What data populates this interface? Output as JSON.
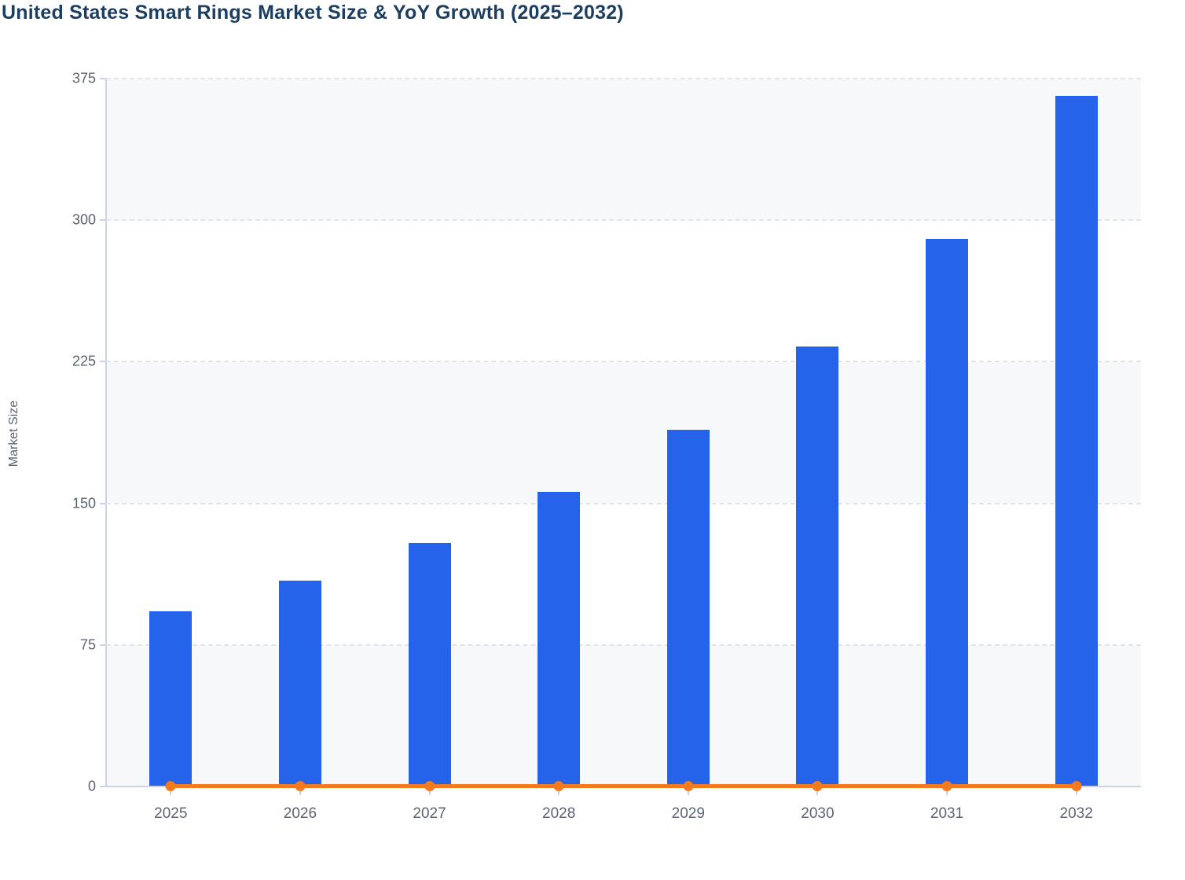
{
  "title": "United States Smart Rings Market Size & YoY Growth (2025–2032)",
  "colors": {
    "bar_blue": "#2563eb",
    "line_orange": "#f5791d",
    "title_text": "#1d3e63",
    "axis_text": "#5a6472",
    "axis_line": "#c9d3e8",
    "gridline": "#e3e4e8",
    "plot_band": "#f7f8fa"
  },
  "chart_data": {
    "type": "bar",
    "subtype": "vertical bars with flat line overlay",
    "title": "United States Smart Rings Market Size & YoY Growth (2025–2032)",
    "categories": [
      "2025",
      "2026",
      "2027",
      "2028",
      "2029",
      "2030",
      "2031",
      "2032"
    ],
    "series": [
      {
        "name": "Market Size",
        "type": "bar",
        "color": "#2563eb",
        "values": [
          93,
          109,
          129,
          156,
          189,
          233,
          290,
          366
        ]
      },
      {
        "name": "YoY Growth",
        "type": "line",
        "color": "#f5791d",
        "values": [
          0,
          0,
          0,
          0,
          0,
          0,
          0,
          0
        ],
        "render_note": "renders as a flat orange line with circular markers along the 0 baseline, spanning from first to last category"
      }
    ],
    "xlabel": "",
    "ylabel": "Market Size",
    "y_ticks": [
      0,
      75,
      150,
      225,
      300,
      375
    ],
    "ylim": [
      0,
      375
    ],
    "grid": "horizontal dashed gridlines at each y tick",
    "background_bands": "alternating light-gray / white horizontal bands every 75 units",
    "legend": "none"
  }
}
